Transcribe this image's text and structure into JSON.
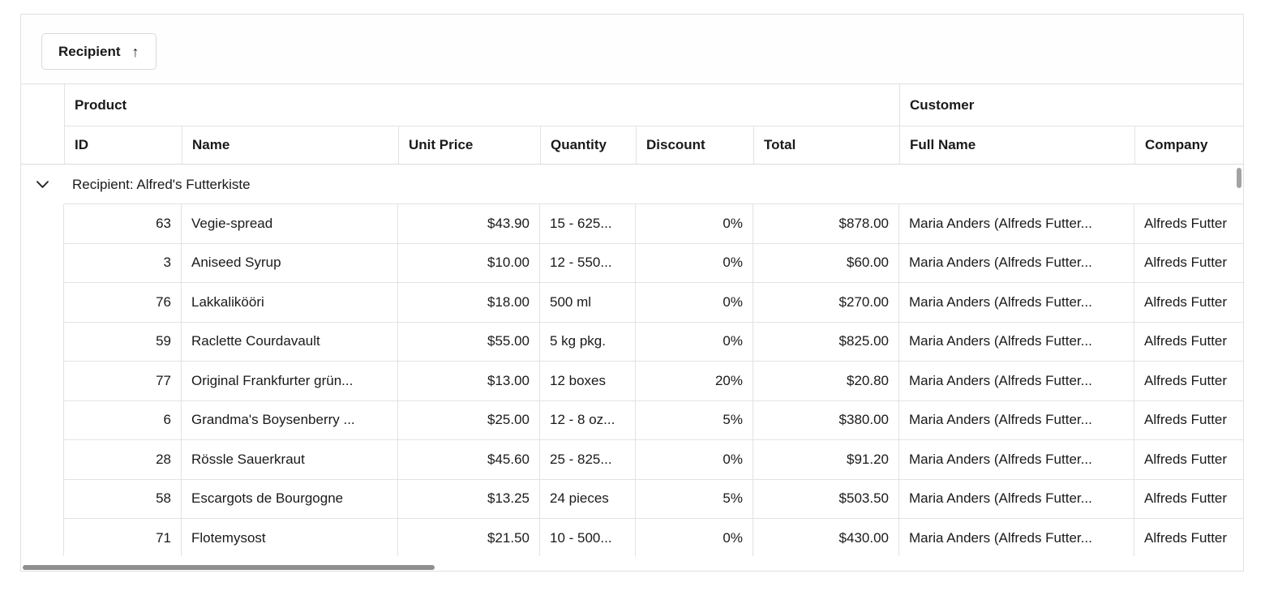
{
  "group_bar": {
    "chip_label": "Recipient",
    "sort_glyph": "↑",
    "sort_icon": "sort-ascending-icon"
  },
  "stacked_headers": {
    "product": "Product",
    "customer": "Customer"
  },
  "columns": [
    {
      "key": "id",
      "label": "ID",
      "align": "right"
    },
    {
      "key": "name",
      "label": "Name",
      "align": "left"
    },
    {
      "key": "unit_price",
      "label": "Unit Price",
      "align": "right"
    },
    {
      "key": "quantity",
      "label": "Quantity",
      "align": "left"
    },
    {
      "key": "discount",
      "label": "Discount",
      "align": "right"
    },
    {
      "key": "total",
      "label": "Total",
      "align": "right"
    },
    {
      "key": "full_name",
      "label": "Full Name",
      "align": "left"
    },
    {
      "key": "company",
      "label": "Company",
      "align": "left"
    }
  ],
  "group_row": {
    "caption": "Recipient: Alfred's Futterkiste",
    "expanded": true,
    "expander_icon": "chevron-down-icon"
  },
  "rows": [
    {
      "id": "63",
      "name": "Vegie-spread",
      "unit_price": "$43.90",
      "quantity": "15 - 625...",
      "discount": "0%",
      "total": "$878.00",
      "full_name": "Maria Anders (Alfreds Futter...",
      "company": "Alfreds Futter"
    },
    {
      "id": "3",
      "name": "Aniseed Syrup",
      "unit_price": "$10.00",
      "quantity": "12 - 550...",
      "discount": "0%",
      "total": "$60.00",
      "full_name": "Maria Anders (Alfreds Futter...",
      "company": "Alfreds Futter"
    },
    {
      "id": "76",
      "name": "Lakkalikööri",
      "unit_price": "$18.00",
      "quantity": "500 ml",
      "discount": "0%",
      "total": "$270.00",
      "full_name": "Maria Anders (Alfreds Futter...",
      "company": "Alfreds Futter"
    },
    {
      "id": "59",
      "name": "Raclette Courdavault",
      "unit_price": "$55.00",
      "quantity": "5 kg pkg.",
      "discount": "0%",
      "total": "$825.00",
      "full_name": "Maria Anders (Alfreds Futter...",
      "company": "Alfreds Futter"
    },
    {
      "id": "77",
      "name": "Original Frankfurter grün...",
      "unit_price": "$13.00",
      "quantity": "12 boxes",
      "discount": "20%",
      "total": "$20.80",
      "full_name": "Maria Anders (Alfreds Futter...",
      "company": "Alfreds Futter"
    },
    {
      "id": "6",
      "name": "Grandma's Boysenberry ...",
      "unit_price": "$25.00",
      "quantity": "12 - 8 oz...",
      "discount": "5%",
      "total": "$380.00",
      "full_name": "Maria Anders (Alfreds Futter...",
      "company": "Alfreds Futter"
    },
    {
      "id": "28",
      "name": "Rössle Sauerkraut",
      "unit_price": "$45.60",
      "quantity": "25 - 825...",
      "discount": "0%",
      "total": "$91.20",
      "full_name": "Maria Anders (Alfreds Futter...",
      "company": "Alfreds Futter"
    },
    {
      "id": "58",
      "name": "Escargots de Bourgogne",
      "unit_price": "$13.25",
      "quantity": "24 pieces",
      "discount": "5%",
      "total": "$503.50",
      "full_name": "Maria Anders (Alfreds Futter...",
      "company": "Alfreds Futter"
    },
    {
      "id": "71",
      "name": "Flotemysost",
      "unit_price": "$21.50",
      "quantity": "10 - 500...",
      "discount": "0%",
      "total": "$430.00",
      "full_name": "Maria Anders (Alfreds Futter...",
      "company": "Alfreds Futter"
    }
  ],
  "scrollbars": {
    "horizontal_visible": true,
    "vertical_visible": true
  },
  "colors": {
    "border": "#e0e0e0",
    "cell_border": "#e2e2e2",
    "text": "#1a1a1a",
    "hscroll_thumb": "#8f8f8f",
    "vscroll_thumb": "#a3a3a3",
    "background": "#ffffff"
  }
}
